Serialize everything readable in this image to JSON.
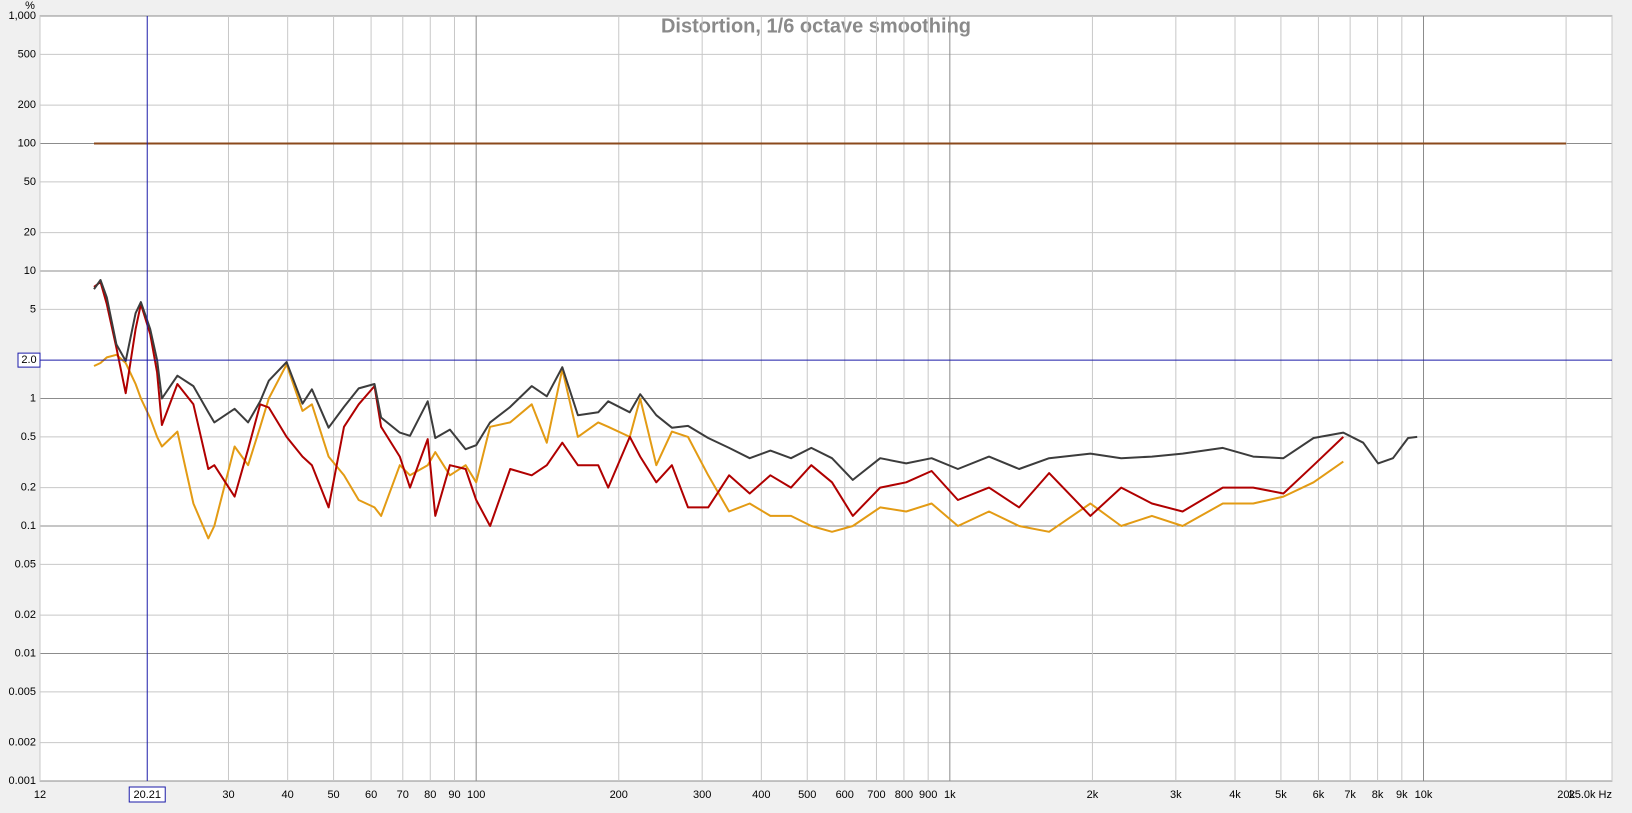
{
  "chart_data": {
    "type": "line",
    "title": "Distortion, 1/6 octave smoothing",
    "y_label": "%",
    "log_x": true,
    "log_y": true,
    "grid": true,
    "xlim": [
      12,
      25000
    ],
    "ylim": [
      0.001,
      1000
    ],
    "xticks": [
      12,
      30,
      40,
      50,
      60,
      70,
      80,
      90,
      100,
      200,
      300,
      400,
      500,
      600,
      700,
      800,
      900,
      {
        "value": 1000,
        "label": "1k"
      },
      {
        "value": 2000,
        "label": "2k"
      },
      {
        "value": 3000,
        "label": "3k"
      },
      {
        "value": 4000,
        "label": "4k"
      },
      {
        "value": 5000,
        "label": "5k"
      },
      {
        "value": 6000,
        "label": "6k"
      },
      {
        "value": 7000,
        "label": "7k"
      },
      {
        "value": 8000,
        "label": "8k"
      },
      {
        "value": 9000,
        "label": "9k"
      },
      {
        "value": 10000,
        "label": "10k"
      },
      {
        "value": 20000,
        "label": "20k"
      },
      {
        "value": 25000,
        "label": "25.0k Hz"
      }
    ],
    "yticks": [
      {
        "value": 1000,
        "label": "1,000"
      },
      500,
      200,
      100,
      50,
      20,
      10,
      5,
      1,
      0.5,
      0.2,
      0.1,
      0.05,
      0.02,
      0.01,
      0.005,
      0.002,
      0.001
    ],
    "cursor": {
      "x": 20.21,
      "y": {
        "value": 2,
        "label": "2.0"
      },
      "color": "#1a1aa8"
    },
    "x": [
      15.6,
      16.1,
      16.6,
      17.4,
      18.2,
      19.1,
      19.6,
      20.5,
      21.2,
      21.7,
      23.4,
      25.3,
      27.2,
      28,
      30.9,
      33,
      35,
      36.5,
      39.8,
      43,
      45,
      48.8,
      52.6,
      56.5,
      61,
      63,
      69,
      72.5,
      79,
      82,
      88,
      95,
      100,
      107,
      118,
      131,
      141,
      152,
      164,
      181,
      190,
      211,
      222,
      240,
      259,
      280,
      309,
      342,
      378,
      418,
      462,
      510,
      564,
      624,
      713,
      809,
      915,
      1040,
      1210,
      1400,
      1620,
      1980,
      2300,
      2670,
      3100,
      3770,
      4370,
      5060,
      5860,
      6770,
      7460,
      8020,
      8620,
      9280,
      9700
    ],
    "series": [
      {
        "color": "#8b4a1c",
        "x": [
          15.6,
          20000
        ],
        "values": [
          100,
          100
        ]
      },
      {
        "color": "#e39b14",
        "values": [
          1.8,
          1.9,
          2.1,
          2.2,
          1.9,
          1.3,
          1.0,
          0.7,
          0.5,
          0.42,
          0.55,
          0.15,
          0.08,
          0.1,
          0.42,
          0.3,
          0.6,
          1.0,
          1.85,
          0.8,
          0.9,
          0.35,
          0.25,
          0.16,
          0.14,
          0.12,
          0.3,
          0.25,
          0.3,
          0.38,
          0.25,
          0.3,
          0.22,
          0.6,
          0.65,
          0.9,
          0.45,
          1.7,
          0.5,
          0.65,
          0.6,
          0.5,
          1.0,
          0.3,
          0.55,
          0.5,
          0.25,
          0.13,
          0.15,
          0.12,
          0.12,
          0.1,
          0.09,
          0.1,
          0.14,
          0.13,
          0.15,
          0.1,
          0.13,
          0.1,
          0.09,
          0.15,
          0.1,
          0.12,
          0.1,
          0.15,
          0.15,
          0.17,
          0.22,
          0.32,
          null,
          null,
          null,
          null,
          null
        ]
      },
      {
        "color": "#b00000",
        "values": [
          7.5,
          8.2,
          5.5,
          2.5,
          1.1,
          3.5,
          5.5,
          3.2,
          1.6,
          0.62,
          1.3,
          0.9,
          0.28,
          0.3,
          0.17,
          0.4,
          0.9,
          0.85,
          0.5,
          0.35,
          0.3,
          0.14,
          0.6,
          0.9,
          1.25,
          0.6,
          0.35,
          0.2,
          0.48,
          0.12,
          0.3,
          0.28,
          0.16,
          0.1,
          0.28,
          0.25,
          0.3,
          0.45,
          0.3,
          0.3,
          0.2,
          0.5,
          0.35,
          0.22,
          0.3,
          0.14,
          0.14,
          0.25,
          0.18,
          0.25,
          0.2,
          0.3,
          0.22,
          0.12,
          0.2,
          0.22,
          0.27,
          0.16,
          0.2,
          0.14,
          0.26,
          0.12,
          0.2,
          0.15,
          0.13,
          0.2,
          0.2,
          0.18,
          0.3,
          0.5,
          null,
          null,
          null,
          null,
          null
        ]
      },
      {
        "color": "#3c3c3c",
        "values": [
          7.2,
          8.5,
          6.2,
          2.66,
          1.97,
          4.67,
          5.7,
          3.5,
          2.0,
          1.0,
          1.51,
          1.25,
          0.78,
          0.65,
          0.83,
          0.65,
          0.95,
          1.38,
          1.93,
          0.91,
          1.18,
          0.59,
          0.86,
          1.2,
          1.3,
          0.71,
          0.54,
          0.51,
          0.95,
          0.49,
          0.57,
          0.4,
          0.43,
          0.65,
          0.86,
          1.25,
          1.04,
          1.76,
          0.74,
          0.78,
          0.95,
          0.78,
          1.08,
          0.74,
          0.59,
          0.61,
          0.49,
          0.41,
          0.34,
          0.39,
          0.34,
          0.41,
          0.34,
          0.23,
          0.34,
          0.31,
          0.34,
          0.28,
          0.35,
          0.28,
          0.34,
          0.37,
          0.34,
          0.35,
          0.37,
          0.41,
          0.35,
          0.34,
          0.49,
          0.54,
          0.45,
          0.31,
          0.34,
          0.49,
          0.5
        ]
      }
    ]
  }
}
